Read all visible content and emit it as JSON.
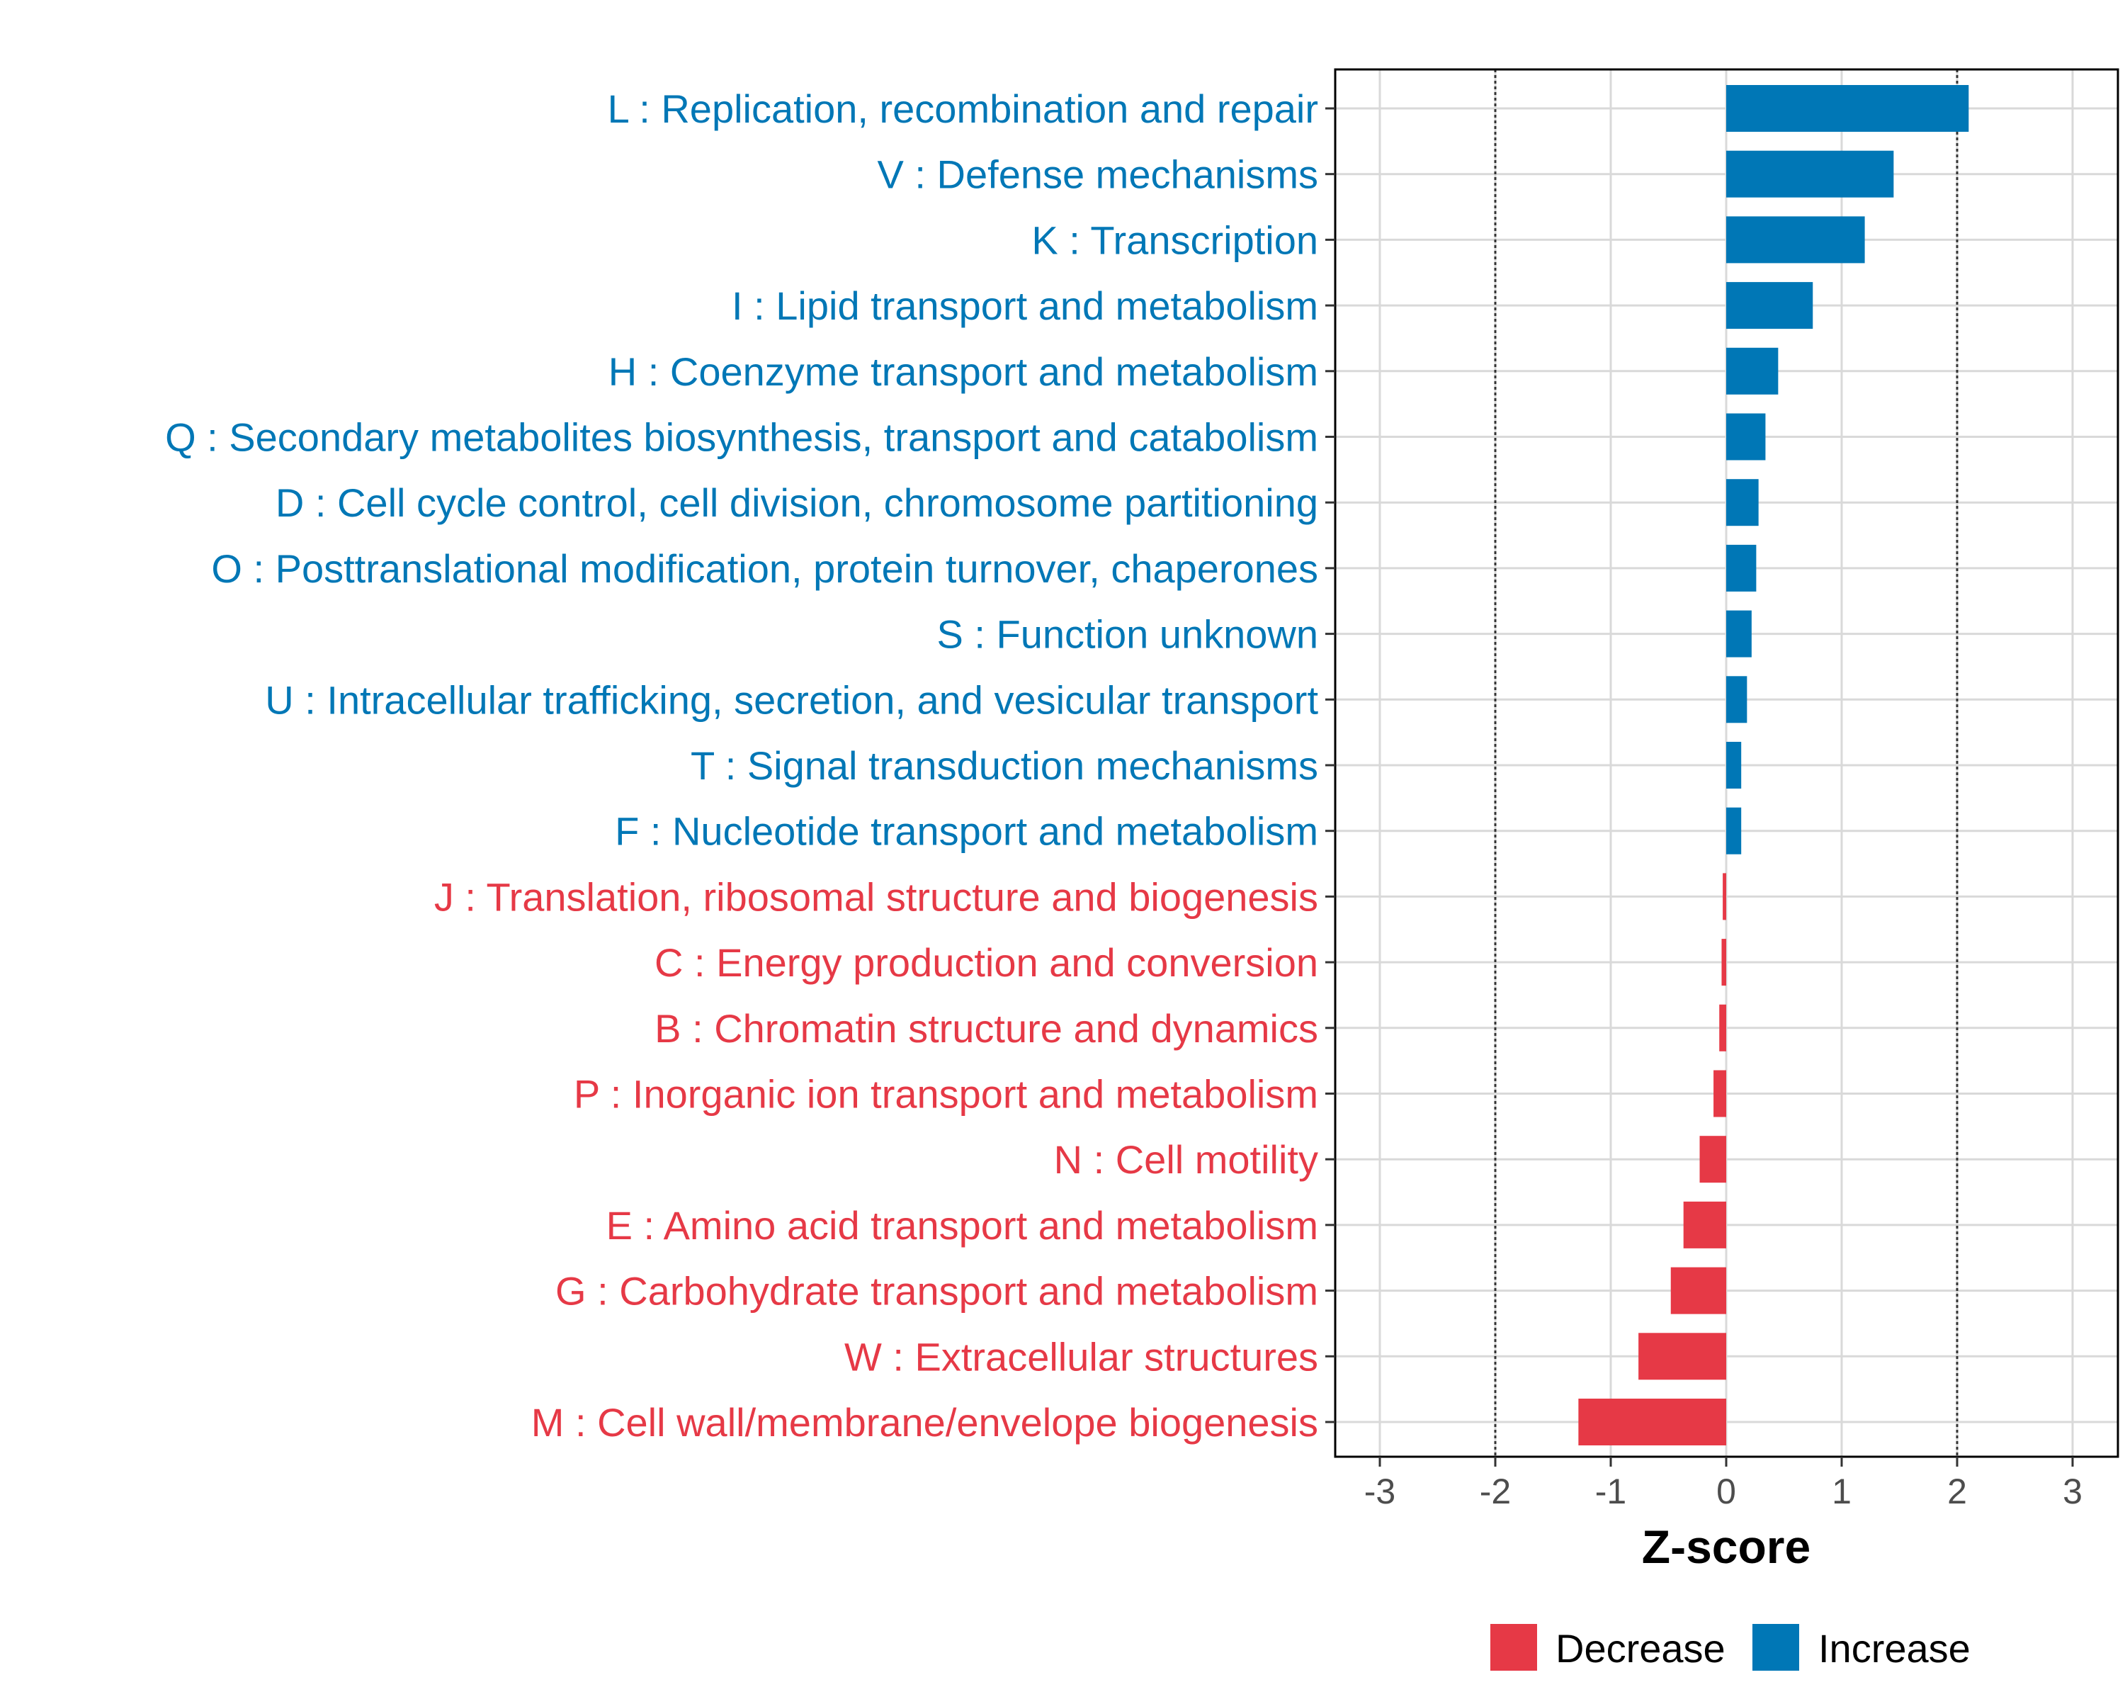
{
  "chart_data": {
    "type": "bar",
    "orientation": "horizontal",
    "title": "",
    "xlabel": "Z-score",
    "ylabel": "",
    "xlim": [
      -3.35,
      3.35
    ],
    "xticks": [
      "-3",
      "-2",
      "-1",
      "0",
      "1",
      "2",
      "3"
    ],
    "reference_lines": [
      -2,
      2
    ],
    "grid": true,
    "legend_position": "bottom",
    "categories": [
      {
        "label": "L : Replication, recombination and repair",
        "value": 2.1,
        "direction": "Increase"
      },
      {
        "label": "V : Defense mechanisms",
        "value": 1.45,
        "direction": "Increase"
      },
      {
        "label": "K : Transcription",
        "value": 1.2,
        "direction": "Increase"
      },
      {
        "label": "I : Lipid transport and metabolism",
        "value": 0.75,
        "direction": "Increase"
      },
      {
        "label": "H : Coenzyme transport and metabolism",
        "value": 0.45,
        "direction": "Increase"
      },
      {
        "label": "Q : Secondary metabolites biosynthesis, transport and catabolism",
        "value": 0.34,
        "direction": "Increase"
      },
      {
        "label": "D : Cell cycle control, cell division, chromosome partitioning",
        "value": 0.28,
        "direction": "Increase"
      },
      {
        "label": "O : Posttranslational modification, protein turnover, chaperones",
        "value": 0.26,
        "direction": "Increase"
      },
      {
        "label": "S : Function unknown",
        "value": 0.22,
        "direction": "Increase"
      },
      {
        "label": "U : Intracellular trafficking, secretion, and vesicular transport",
        "value": 0.18,
        "direction": "Increase"
      },
      {
        "label": "T : Signal transduction mechanisms",
        "value": 0.13,
        "direction": "Increase"
      },
      {
        "label": "F : Nucleotide transport and metabolism",
        "value": 0.13,
        "direction": "Increase"
      },
      {
        "label": "J : Translation, ribosomal structure and biogenesis",
        "value": -0.03,
        "direction": "Decrease"
      },
      {
        "label": "C : Energy production and conversion",
        "value": -0.04,
        "direction": "Decrease"
      },
      {
        "label": "B : Chromatin structure and dynamics",
        "value": -0.06,
        "direction": "Decrease"
      },
      {
        "label": "P : Inorganic ion transport and metabolism",
        "value": -0.11,
        "direction": "Decrease"
      },
      {
        "label": "N : Cell motility",
        "value": -0.23,
        "direction": "Decrease"
      },
      {
        "label": "E : Amino acid transport and metabolism",
        "value": -0.37,
        "direction": "Decrease"
      },
      {
        "label": "G : Carbohydrate transport and metabolism",
        "value": -0.48,
        "direction": "Decrease"
      },
      {
        "label": "W : Extracellular structures",
        "value": -0.76,
        "direction": "Decrease"
      },
      {
        "label": "M : Cell wall/membrane/envelope biogenesis",
        "value": -1.28,
        "direction": "Decrease"
      }
    ],
    "legend": [
      {
        "label": "Decrease",
        "color": "#E63946"
      },
      {
        "label": "Increase",
        "color": "#0077B6"
      }
    ],
    "colors": {
      "Decrease": "#E63946",
      "Increase": "#0077B6",
      "grid": "#d9d9d9",
      "reference_line": "#333333",
      "axis": "#000000"
    }
  }
}
